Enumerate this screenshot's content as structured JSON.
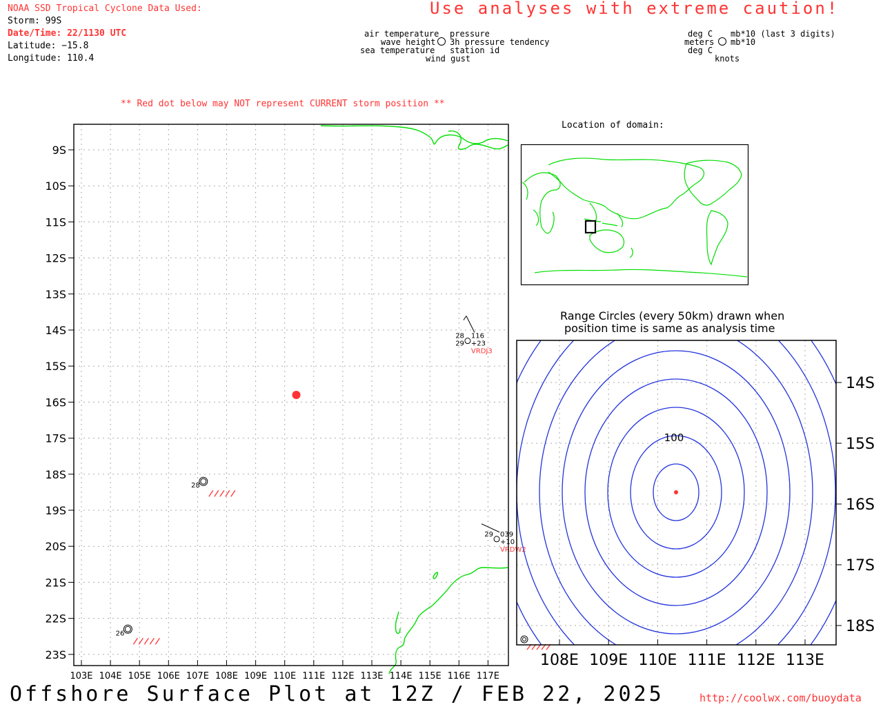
{
  "header": {
    "source": "NOAA SSD Tropical Cyclone Data Used:",
    "storm": "Storm: 99S",
    "datetime": "Date/Time: 22/1130 UTC",
    "latitude": "Latitude: −15.8",
    "longitude": "Longitude: 110.4",
    "caution": "Use analyses with extreme caution!",
    "red_dot_note": "** Red dot below may NOT represent CURRENT storm position **"
  },
  "legend": {
    "left_col": [
      "air temperature",
      "wave height",
      "sea temperature"
    ],
    "right_col": [
      "pressure",
      "3h pressure tendency",
      "station id"
    ],
    "bottom": "wind gust",
    "units_left": [
      "deg C",
      "meters",
      "deg C"
    ],
    "units_right": [
      "mb*10 (last 3 digits)",
      "mb*10",
      ""
    ],
    "units_bottom": "knots"
  },
  "main_map": {
    "lat_labels": [
      "9S",
      "10S",
      "11S",
      "12S",
      "13S",
      "14S",
      "15S",
      "16S",
      "17S",
      "18S",
      "19S",
      "20S",
      "21S",
      "22S",
      "23S"
    ],
    "lon_labels": [
      "103E",
      "104E",
      "105E",
      "106E",
      "107E",
      "108E",
      "109E",
      "110E",
      "111E",
      "112E",
      "113E",
      "114E",
      "115E",
      "116E",
      "117E"
    ],
    "storm_position": {
      "lat": -15.8,
      "lon": 110.4
    },
    "stations": [
      {
        "id": "VRDJ3",
        "air_temp": "28",
        "sea_temp": "29",
        "pressure": "116",
        "tendency": "+23",
        "lat": -14.3,
        "lon": 116.3
      },
      {
        "id": "VRDW2",
        "air_temp": "29",
        "pressure": "039",
        "tendency": "+10",
        "lat": -19.8,
        "lon": 117.3
      },
      {
        "air_temp": "28",
        "lat": -18.2,
        "lon": 107.2
      },
      {
        "air_temp": "26",
        "lat": -22.3,
        "lon": 104.6
      }
    ]
  },
  "inset": {
    "title": "Location of domain:"
  },
  "range_map": {
    "title_line1": "Range Circles (every 50km) drawn when",
    "title_line2": "position time is same as analysis time",
    "circle_label": "100",
    "lat_labels": [
      "14S",
      "15S",
      "16S",
      "17S",
      "18S"
    ],
    "lon_labels": [
      "108E",
      "109E",
      "110E",
      "111E",
      "112E",
      "113E"
    ]
  },
  "footer": {
    "title": "Offshore Surface Plot at 12Z / FEB 22, 2025",
    "url": "http://coolwx.com/buoydata"
  },
  "colors": {
    "coast": "#00dd00",
    "storm": "#ff3333",
    "range": "#2233dd",
    "grid": "#999999"
  }
}
